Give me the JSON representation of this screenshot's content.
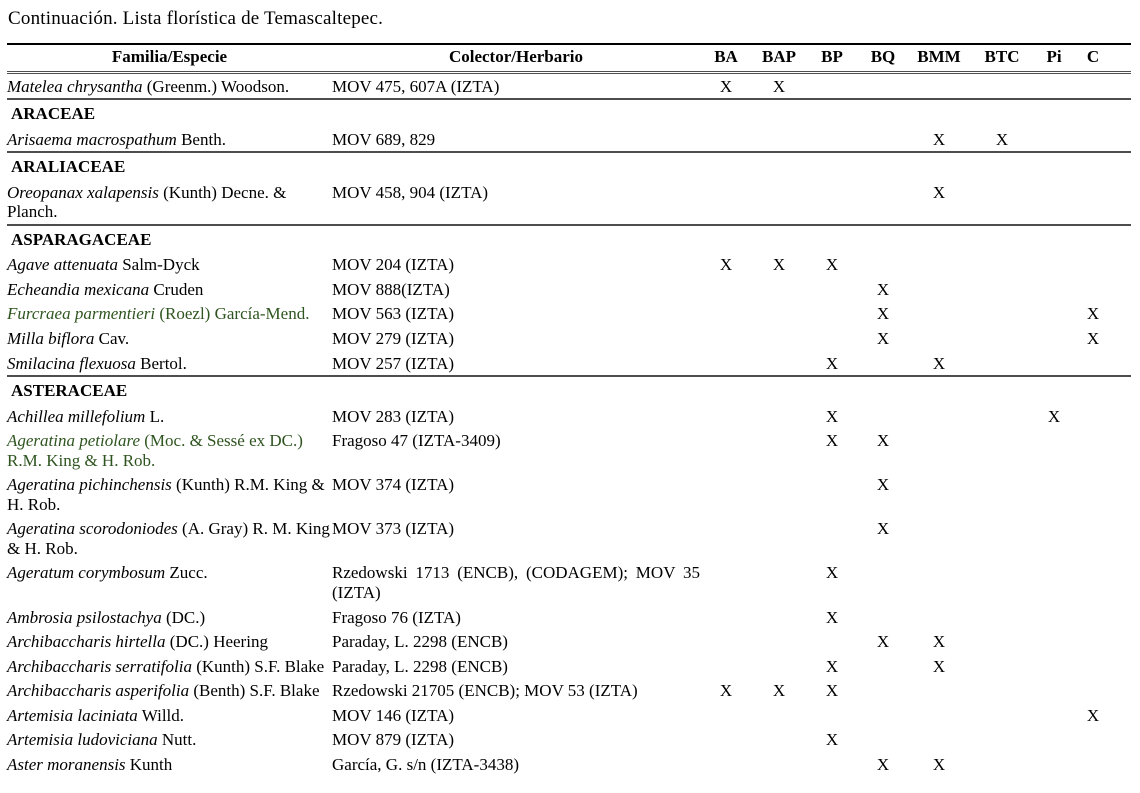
{
  "title": "Continuación. Lista florística de Temascaltepec.",
  "colors": {
    "text": "#000000",
    "highlight_green": "#2e541f",
    "rule_dark": "#000000",
    "rule_gray": "#4d4d4d"
  },
  "table": {
    "mark_symbol": "X",
    "headers": {
      "family_species": "Familia/Especie",
      "collector": "Colector/Herbario",
      "sites": [
        "BA",
        "BAP",
        "BP",
        "BQ",
        "BMM",
        "BTC",
        "Pi",
        "C"
      ]
    },
    "rows": [
      {
        "type": "species",
        "species": "Matelea chrysantha",
        "author": "(Greenm.) Woodson.",
        "collector": "MOV 475, 607A (IZTA)",
        "marks": [
          "BA",
          "BAP"
        ],
        "green": false
      },
      {
        "type": "family",
        "label": "ARACEAE"
      },
      {
        "type": "species",
        "species": "Arisaema macrospathum",
        "author": "Benth.",
        "collector": "MOV 689, 829",
        "marks": [
          "BMM",
          "BTC"
        ],
        "green": false
      },
      {
        "type": "family",
        "label": "ARALIACEAE"
      },
      {
        "type": "species",
        "species": "Oreopanax xalapensis",
        "author": "(Kunth) Decne. & Planch.",
        "collector": "MOV 458, 904 (IZTA)",
        "marks": [
          "BMM"
        ],
        "green": false
      },
      {
        "type": "family",
        "label": "ASPARAGACEAE"
      },
      {
        "type": "species",
        "species": "Agave attenuata",
        "author": "Salm-Dyck",
        "collector": "MOV 204 (IZTA)",
        "marks": [
          "BA",
          "BAP",
          "BP"
        ],
        "green": false
      },
      {
        "type": "species",
        "species": "Echeandia mexicana",
        "author": "Cruden",
        "collector": "MOV 888(IZTA)",
        "marks": [
          "BQ"
        ],
        "green": false
      },
      {
        "type": "species",
        "species": "Furcraea parmentieri",
        "author": "(Roezl) García-Mend.",
        "collector": "MOV 563 (IZTA)",
        "marks": [
          "BQ",
          "C"
        ],
        "green": true
      },
      {
        "type": "species",
        "species": "Milla biflora",
        "author": "Cav.",
        "collector": "MOV 279 (IZTA)",
        "marks": [
          "BQ",
          "C"
        ],
        "green": false
      },
      {
        "type": "species",
        "species": "Smilacina flexuosa",
        "author": "Bertol.",
        "collector": "MOV 257 (IZTA)",
        "marks": [
          "BP",
          "BMM"
        ],
        "green": false
      },
      {
        "type": "family",
        "label": "ASTERACEAE"
      },
      {
        "type": "species",
        "species": "Achillea millefolium",
        "author": "L.",
        "collector": "MOV 283 (IZTA)",
        "marks": [
          "BP",
          "Pi"
        ],
        "green": false
      },
      {
        "type": "species",
        "species": "Ageratina petiolare",
        "author": "(Moc. & Sessé ex DC.) R.M. King & H. Rob.",
        "collector": "Fragoso 47 (IZTA-3409)",
        "marks": [
          "BP",
          "BQ"
        ],
        "green": true
      },
      {
        "type": "species",
        "species": "Ageratina pichinchensis",
        "author": "(Kunth) R.M. King & H. Rob.",
        "collector": "MOV 374 (IZTA)",
        "marks": [
          "BQ"
        ],
        "green": false
      },
      {
        "type": "species",
        "species": "Ageratina scorodoniodes",
        "author": "(A. Gray) R. M. King & H. Rob.",
        "collector": "MOV 373 (IZTA)",
        "marks": [
          "BQ"
        ],
        "green": false
      },
      {
        "type": "species",
        "species": "Ageratum corymbosum",
        "author": "Zucc.",
        "collector": "Rzedowski 1713 (ENCB), (CODAGEM); MOV 35 (IZTA)",
        "marks": [
          "BP"
        ],
        "green": false
      },
      {
        "type": "species",
        "species": "Ambrosia psilostachya",
        "author": "(DC.)",
        "collector": "Fragoso 76 (IZTA)",
        "marks": [
          "BP"
        ],
        "green": false
      },
      {
        "type": "species",
        "species": "Archibaccharis hirtella",
        "author": "(DC.) Heering",
        "collector": "Paraday, L. 2298 (ENCB)",
        "marks": [
          "BQ",
          "BMM"
        ],
        "green": false
      },
      {
        "type": "species",
        "species": "Archibaccharis serratifolia",
        "author": "(Kunth) S.F. Blake",
        "collector": "Paraday, L. 2298 (ENCB)",
        "marks": [
          "BP",
          "BMM"
        ],
        "green": false
      },
      {
        "type": "species",
        "species": "Archibaccharis asperifolia",
        "author": "(Benth) S.F. Blake",
        "collector": "Rzedowski 21705 (ENCB); MOV 53 (IZTA)",
        "marks": [
          "BA",
          "BAP",
          "BP"
        ],
        "green": false
      },
      {
        "type": "species",
        "species": "Artemisia laciniata",
        "author": "Willd.",
        "collector": "MOV 146 (IZTA)",
        "marks": [
          "C"
        ],
        "green": false
      },
      {
        "type": "species",
        "species": "Artemisia ludoviciana",
        "author": "Nutt.",
        "collector": "MOV 879 (IZTA)",
        "marks": [
          "BP"
        ],
        "green": false
      },
      {
        "type": "species",
        "species": "Aster moranensis",
        "author": "Kunth",
        "collector": "García, G. s/n (IZTA-3438)",
        "marks": [
          "BQ",
          "BMM"
        ],
        "green": false
      }
    ]
  }
}
